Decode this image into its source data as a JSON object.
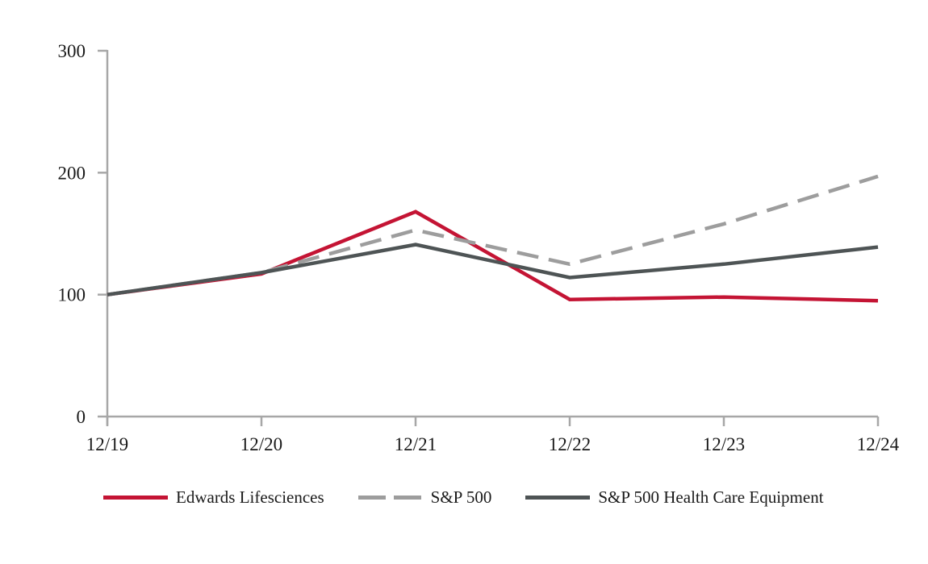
{
  "page": {
    "background_color": "#FFFFFF",
    "text_color": "#1A1A1A",
    "axis_color": "#A7A7A7"
  },
  "chart_data": {
    "type": "line",
    "title": "",
    "xlabel": "",
    "ylabel": "",
    "x_categories": [
      "12/19",
      "12/20",
      "12/21",
      "12/22",
      "12/23",
      "12/24"
    ],
    "y_ticks": [
      0,
      100,
      200,
      300
    ],
    "ylim": [
      0,
      300
    ],
    "grid": false,
    "legend_position": "bottom",
    "series": [
      {
        "name": "Edwards Lifesciences",
        "color": "#C41434",
        "style": "solid",
        "values": [
          100,
          117,
          168,
          96,
          98,
          95
        ]
      },
      {
        "name": "S&P 500",
        "color": "#9D9D9D",
        "style": "dashed",
        "values": [
          100,
          118,
          153,
          125,
          158,
          197
        ]
      },
      {
        "name": "S&P 500 Health Care Equipment",
        "color": "#4E5455",
        "style": "solid",
        "values": [
          100,
          118,
          141,
          114,
          125,
          139
        ]
      }
    ]
  }
}
